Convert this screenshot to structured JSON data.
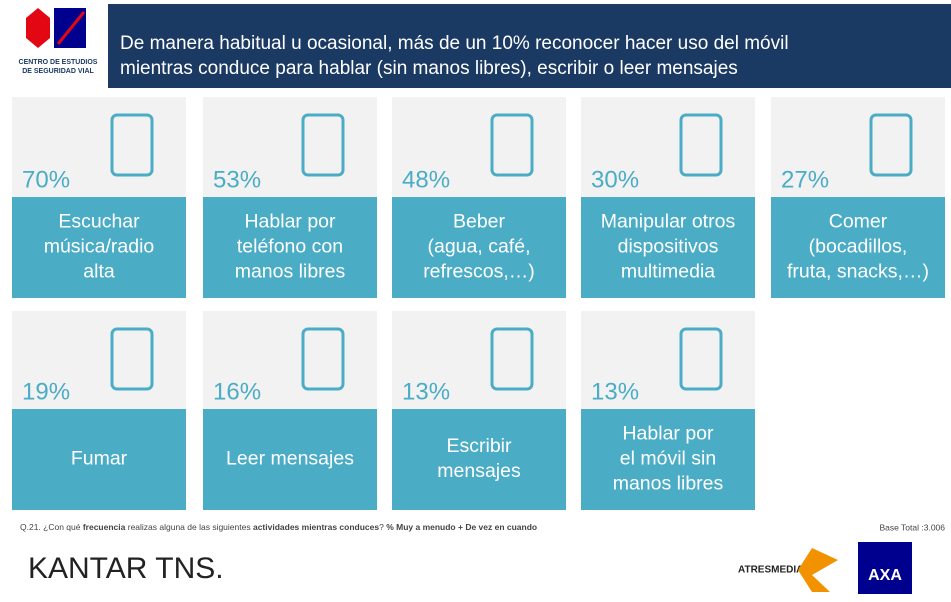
{
  "header": {
    "title": [
      "De manera habitual u ocasional, más de un 10% reconocer hacer uso del móvil",
      "mientras conduce para hablar (sin manos libres), escribir o leer mensajes"
    ],
    "logo_text": [
      "CENTRO DE ESTUDIOS",
      "DE SEGURIDAD VIAL"
    ]
  },
  "cards": [
    {
      "percent": "70%",
      "label": [
        "Escuchar",
        "música/radio",
        "alta"
      ]
    },
    {
      "percent": "53%",
      "label": [
        "Hablar por",
        "teléfono con",
        "manos libres"
      ]
    },
    {
      "percent": "48%",
      "label": [
        "Beber",
        "(agua, café,",
        "refrescos,…)"
      ]
    },
    {
      "percent": "30%",
      "label": [
        "Manipular otros",
        "dispositivos",
        "multimedia"
      ]
    },
    {
      "percent": "27%",
      "label": [
        "Comer",
        "(bocadillos,",
        "fruta, snacks,…)"
      ]
    },
    {
      "percent": "19%",
      "label": [
        "Fumar"
      ]
    },
    {
      "percent": "16%",
      "label": [
        "Leer mensajes"
      ]
    },
    {
      "percent": "13%",
      "label": [
        "Escribir",
        "mensajes"
      ]
    },
    {
      "percent": "13%",
      "label": [
        "Hablar por",
        "el móvil sin",
        "manos libres"
      ]
    }
  ],
  "footer": {
    "question": [
      "Q.21. ¿Con qué ",
      "frecuencia",
      " realizas alguna de las siguientes ",
      "actividades mientras conduces",
      "? ",
      "% Muy a menudo + De vez en cuando"
    ],
    "base": "Base Total :3.006",
    "brand": "KANTAR TNS.",
    "partner": "ATRESMEDIA",
    "axa": "AXA"
  }
}
